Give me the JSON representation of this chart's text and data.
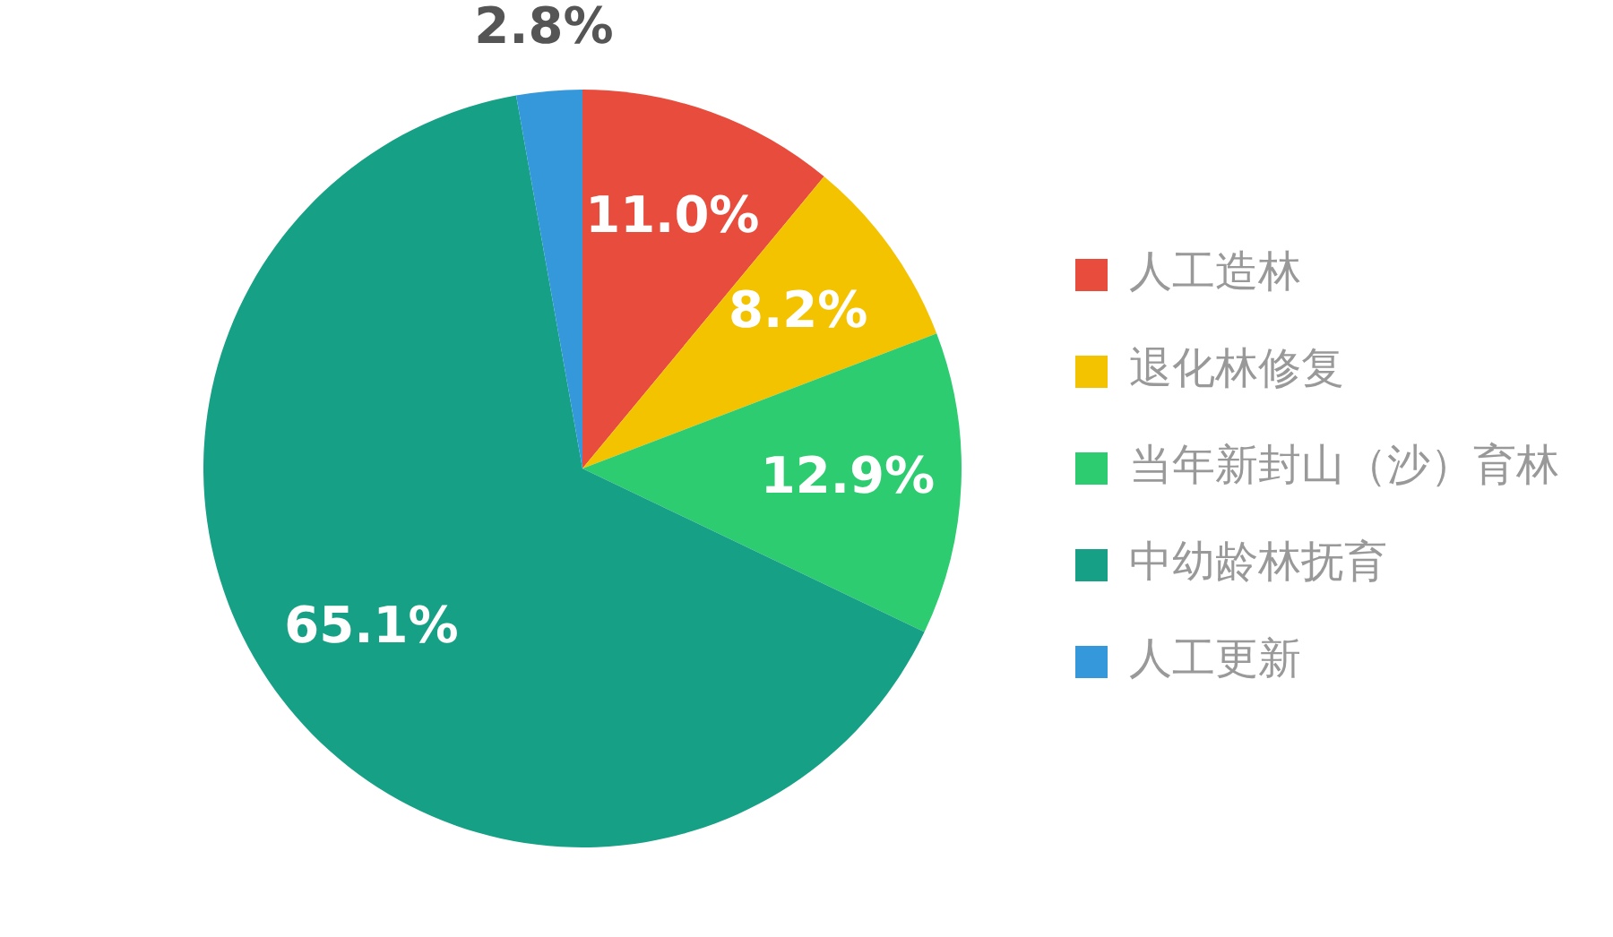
{
  "chart_data": {
    "type": "pie",
    "categories": [
      "人工造林",
      "退化林修复",
      "当年新封山（沙）育林",
      "中幼龄林抚育",
      "人工更新"
    ],
    "values": [
      11.0,
      8.2,
      12.9,
      65.1,
      2.8
    ],
    "colors": [
      "#e74c3c",
      "#f4c300",
      "#2ecc71",
      "#16a085",
      "#3498db"
    ],
    "value_labels": [
      "11.0%",
      "8.2%",
      "12.9%",
      "65.1%",
      "2.8%"
    ],
    "legend": "right"
  }
}
